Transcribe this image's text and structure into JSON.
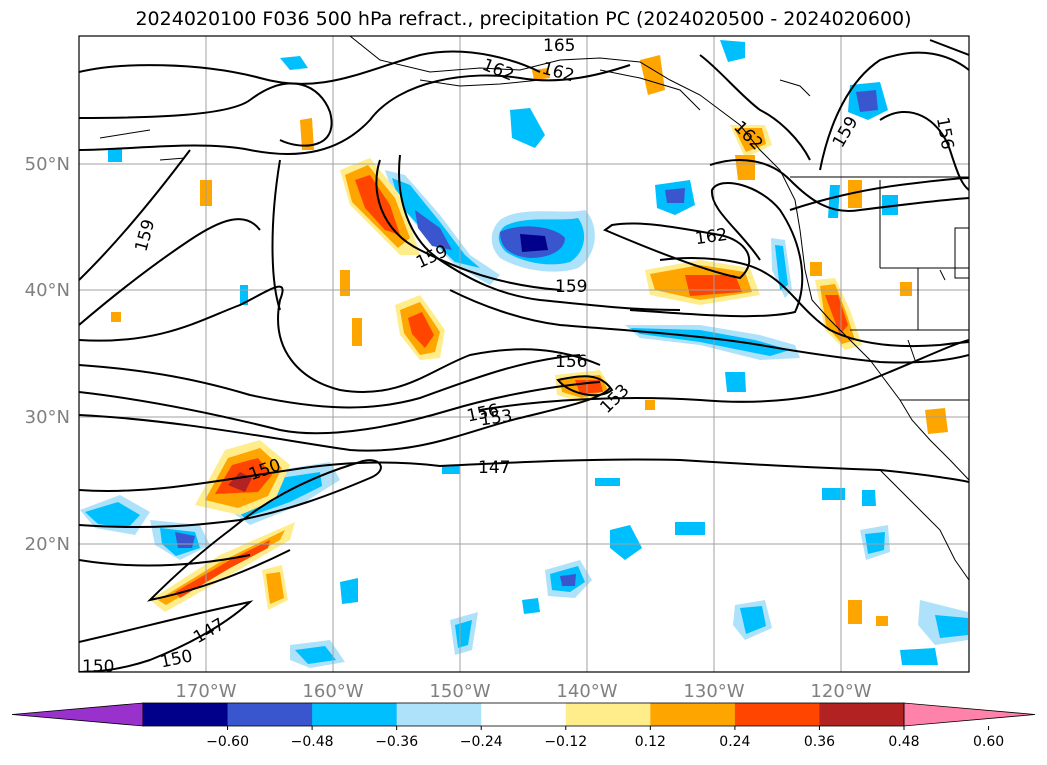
{
  "title": "2024020100 F036 500 hPa refract., precipitation PC (2024020500 - 2024020600)",
  "axes": {
    "lat_labels": [
      "50°N",
      "40°N",
      "30°N",
      "20°N"
    ],
    "lon_labels": [
      "170°W",
      "160°W",
      "150°W",
      "140°W",
      "130°W",
      "120°W"
    ],
    "lat_values": [
      50,
      40,
      30,
      20
    ],
    "lon_values": [
      -170,
      -160,
      -150,
      -140,
      -130,
      -120
    ],
    "lon_range": [
      -180,
      -110
    ],
    "lat_range": [
      10,
      60
    ],
    "grid": true
  },
  "contour_labels": [
    {
      "text": "165"
    },
    {
      "text": "162"
    },
    {
      "text": "162"
    },
    {
      "text": "162"
    },
    {
      "text": "162"
    },
    {
      "text": "159"
    },
    {
      "text": "159"
    },
    {
      "text": "159"
    },
    {
      "text": "159"
    },
    {
      "text": "156"
    },
    {
      "text": "156"
    },
    {
      "text": "156"
    },
    {
      "text": "153"
    },
    {
      "text": "153"
    },
    {
      "text": "150"
    },
    {
      "text": "150"
    },
    {
      "text": "150"
    },
    {
      "text": "147"
    },
    {
      "text": "147"
    }
  ],
  "colorbar": {
    "ticks": [
      "−0.60",
      "−0.48",
      "−0.36",
      "−0.24",
      "−0.12",
      "0.12",
      "0.24",
      "0.36",
      "0.48",
      "0.60"
    ],
    "colors": [
      "#9932cc",
      "#00008b",
      "#3a56cf",
      "#00bfff",
      "#aee2fa",
      "#ffffff",
      "#ffec8b",
      "#ffa500",
      "#ff4500",
      "#b22222",
      "#ff82ab"
    ],
    "extend": "both"
  },
  "chart_data": {
    "type": "heatmap",
    "title": "2024020100 F036 500 hPa refract., precipitation PC (2024020500 - 2024020600)",
    "field": "precipitation PC (shaded), 500 hPa refractivity (contours)",
    "xlim": [
      -180,
      -110
    ],
    "ylim": [
      10,
      60
    ],
    "contour_levels": [
      147,
      150,
      153,
      156,
      159,
      162,
      165
    ],
    "color_levels": [
      -0.6,
      -0.48,
      -0.36,
      -0.24,
      -0.12,
      0.12,
      0.24,
      0.36,
      0.48,
      0.6
    ]
  }
}
